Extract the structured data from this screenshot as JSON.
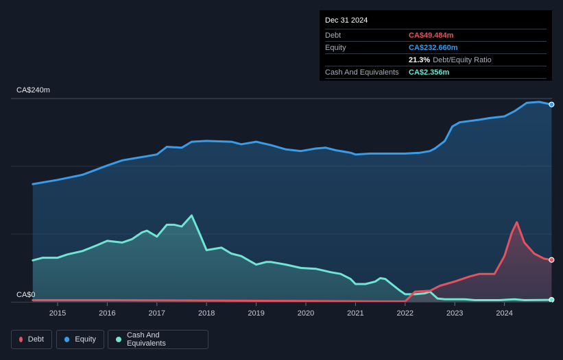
{
  "tooltip": {
    "date": "Dec 31 2024",
    "rows": [
      {
        "label": "Debt",
        "value": "CA$49.484m",
        "color": "#e45260"
      },
      {
        "label": "Equity",
        "value": "CA$232.660m",
        "color": "#3a9ce8"
      },
      {
        "label": "",
        "value": "21.3%",
        "note": "Debt/Equity Ratio",
        "color": "#ffffff"
      },
      {
        "label": "Cash And Equivalents",
        "value": "CA$2.356m",
        "color": "#6ee6d2"
      }
    ]
  },
  "legend": [
    {
      "label": "Debt",
      "color": "#e45260"
    },
    {
      "label": "Equity",
      "color": "#3a9ce8"
    },
    {
      "label": "Cash And Equivalents",
      "color": "#6ee6d2"
    }
  ],
  "chart_data": {
    "type": "area",
    "ylim": [
      0,
      240
    ],
    "y_unit": "CA$m",
    "y_tick_labels": [
      "CA$240m",
      "CA$0"
    ],
    "x_tick_labels": [
      "2015",
      "2016",
      "2017",
      "2018",
      "2019",
      "2020",
      "2021",
      "2022",
      "2023",
      "2024"
    ],
    "series": [
      {
        "name": "Equity",
        "color": "#3a9ce8",
        "points": [
          [
            2014.5,
            139
          ],
          [
            2015.0,
            144
          ],
          [
            2015.5,
            150
          ],
          [
            2016.0,
            161
          ],
          [
            2016.3,
            167
          ],
          [
            2016.6,
            170
          ],
          [
            2016.8,
            172
          ],
          [
            2017.0,
            174
          ],
          [
            2017.2,
            183
          ],
          [
            2017.5,
            182
          ],
          [
            2017.7,
            189
          ],
          [
            2018.0,
            190
          ],
          [
            2018.5,
            189
          ],
          [
            2018.7,
            186
          ],
          [
            2019.0,
            189
          ],
          [
            2019.3,
            185
          ],
          [
            2019.6,
            180
          ],
          [
            2019.9,
            178
          ],
          [
            2020.2,
            181
          ],
          [
            2020.4,
            182
          ],
          [
            2020.6,
            179
          ],
          [
            2020.9,
            176
          ],
          [
            2021.0,
            174
          ],
          [
            2021.3,
            175
          ],
          [
            2021.7,
            175
          ],
          [
            2022.0,
            175
          ],
          [
            2022.3,
            176
          ],
          [
            2022.5,
            178
          ],
          [
            2022.6,
            181
          ],
          [
            2022.8,
            190
          ],
          [
            2022.95,
            207
          ],
          [
            2023.1,
            212
          ],
          [
            2023.5,
            215
          ],
          [
            2023.7,
            217
          ],
          [
            2024.0,
            219
          ],
          [
            2024.2,
            225
          ],
          [
            2024.45,
            235
          ],
          [
            2024.7,
            236
          ],
          [
            2024.95,
            233
          ]
        ]
      },
      {
        "name": "Cash And Equivalents",
        "color": "#6ee6d2",
        "points": [
          [
            2014.5,
            49
          ],
          [
            2014.7,
            52
          ],
          [
            2015.0,
            52
          ],
          [
            2015.2,
            56
          ],
          [
            2015.5,
            60
          ],
          [
            2015.8,
            67
          ],
          [
            2016.0,
            72
          ],
          [
            2016.3,
            70
          ],
          [
            2016.5,
            74
          ],
          [
            2016.7,
            82
          ],
          [
            2016.8,
            84
          ],
          [
            2017.0,
            77
          ],
          [
            2017.2,
            91
          ],
          [
            2017.35,
            91
          ],
          [
            2017.5,
            89
          ],
          [
            2017.7,
            102
          ],
          [
            2017.85,
            82
          ],
          [
            2018.0,
            61
          ],
          [
            2018.2,
            63
          ],
          [
            2018.3,
            64
          ],
          [
            2018.5,
            57
          ],
          [
            2018.7,
            54
          ],
          [
            2018.85,
            49
          ],
          [
            2019.0,
            44
          ],
          [
            2019.2,
            47
          ],
          [
            2019.3,
            47
          ],
          [
            2019.6,
            44
          ],
          [
            2019.9,
            40
          ],
          [
            2020.2,
            39
          ],
          [
            2020.5,
            35
          ],
          [
            2020.7,
            33
          ],
          [
            2020.9,
            27
          ],
          [
            2021.0,
            21
          ],
          [
            2021.2,
            21
          ],
          [
            2021.4,
            24
          ],
          [
            2021.5,
            28
          ],
          [
            2021.6,
            27
          ],
          [
            2021.75,
            20
          ],
          [
            2021.9,
            13
          ],
          [
            2022.0,
            9
          ],
          [
            2022.2,
            9
          ],
          [
            2022.4,
            10
          ],
          [
            2022.5,
            12
          ],
          [
            2022.65,
            4
          ],
          [
            2022.8,
            3
          ],
          [
            2023.0,
            3
          ],
          [
            2023.2,
            3
          ],
          [
            2023.4,
            2
          ],
          [
            2023.6,
            2
          ],
          [
            2023.9,
            2
          ],
          [
            2024.2,
            3
          ],
          [
            2024.4,
            2
          ],
          [
            2024.95,
            2.356
          ]
        ]
      },
      {
        "name": "Debt",
        "color": "#e45260",
        "points": [
          [
            2014.5,
            2
          ],
          [
            2016.0,
            2
          ],
          [
            2018.0,
            1.5
          ],
          [
            2020.0,
            1
          ],
          [
            2021.5,
            0.5
          ],
          [
            2022.0,
            0.5
          ],
          [
            2022.2,
            12
          ],
          [
            2022.5,
            13
          ],
          [
            2022.7,
            19
          ],
          [
            2023.0,
            24
          ],
          [
            2023.3,
            30
          ],
          [
            2023.5,
            33
          ],
          [
            2023.8,
            33
          ],
          [
            2024.0,
            54
          ],
          [
            2024.15,
            82
          ],
          [
            2024.25,
            94
          ],
          [
            2024.4,
            70
          ],
          [
            2024.6,
            57
          ],
          [
            2024.8,
            51
          ],
          [
            2024.95,
            49.484
          ]
        ]
      }
    ]
  }
}
